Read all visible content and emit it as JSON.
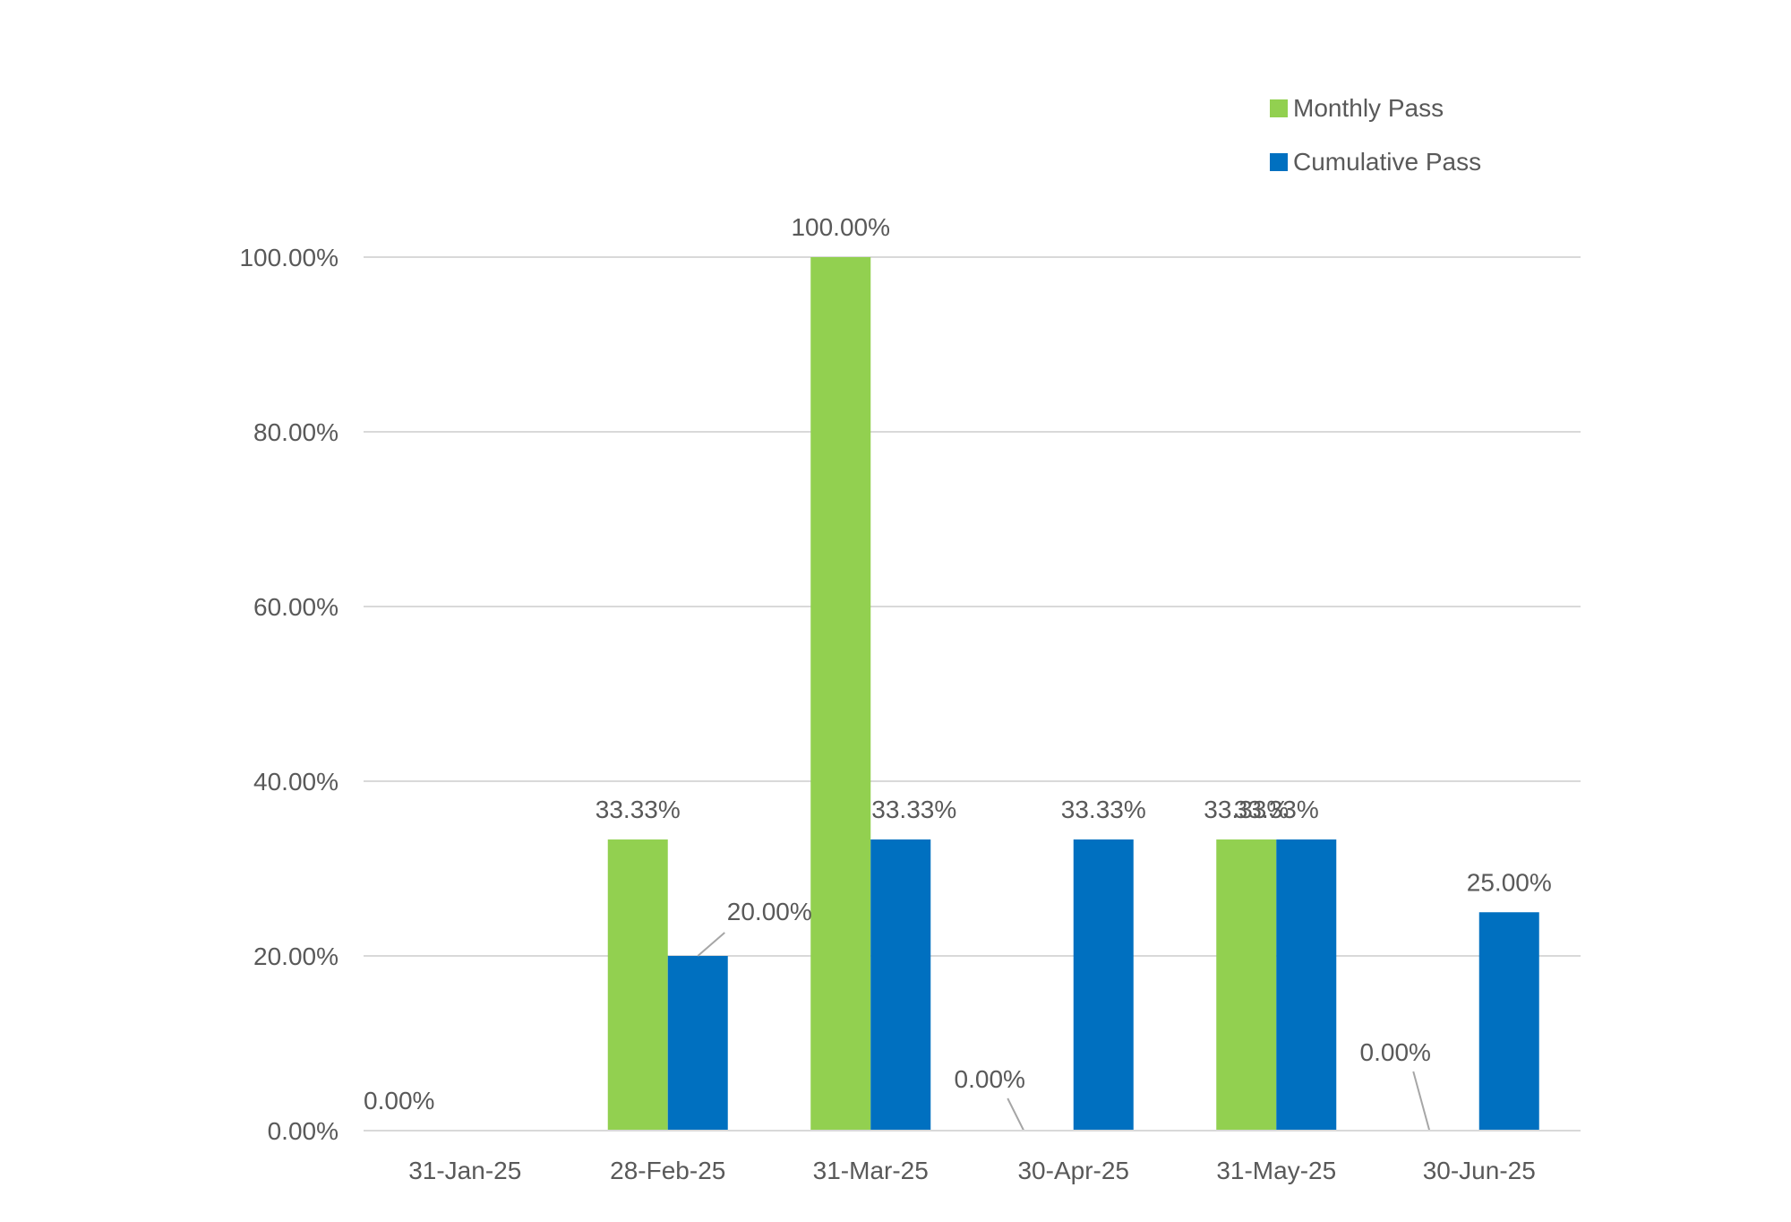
{
  "chart_data": {
    "type": "bar",
    "categories": [
      "31-Jan-25",
      "28-Feb-25",
      "31-Mar-25",
      "30-Apr-25",
      "31-May-25",
      "30-Jun-25"
    ],
    "series": [
      {
        "name": "Monthly Pass",
        "color": "#92D050",
        "values": [
          0,
          33.33,
          100,
          0,
          33.33,
          0
        ],
        "labels": [
          "0.00%",
          "33.33%",
          "100.00%",
          "0.00%",
          "33.33%",
          "0.00%"
        ]
      },
      {
        "name": "Cumulative Pass",
        "color": "#0070C0",
        "values": [
          0,
          20,
          33.33,
          33.33,
          33.33,
          25
        ],
        "labels": [
          "",
          "20.00%",
          "33.33%",
          "33.33%",
          "33.33%",
          "25.00%"
        ]
      }
    ],
    "yticks": [
      "0.00%",
      "20.00%",
      "40.00%",
      "60.00%",
      "80.00%",
      "100.00%"
    ],
    "ylim": [
      0,
      100
    ],
    "grid": true,
    "legend_position": "top-right",
    "title": "",
    "xlabel": "",
    "ylabel": ""
  }
}
